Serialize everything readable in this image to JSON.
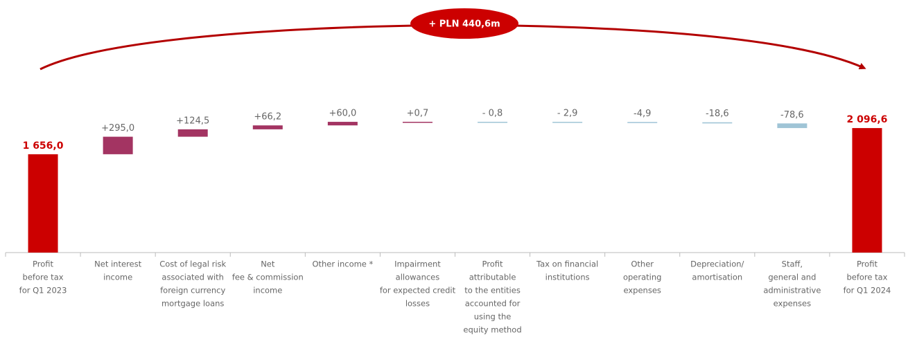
{
  "chart_data": {
    "type": "waterfall",
    "annotation": "+ PLN 440,6m",
    "categories": [
      [
        "Profit",
        "before tax",
        "for Q1 2023"
      ],
      [
        "Net interest",
        "income"
      ],
      [
        "Cost of legal risk",
        "associated with",
        "foreign currency",
        "mortgage loans"
      ],
      [
        "Net",
        "fee & commission",
        "income"
      ],
      [
        "Other income *"
      ],
      [
        "Impairment",
        "allowances",
        "for expected credit",
        "losses"
      ],
      [
        "Profit",
        "attributable",
        "to the entities",
        "accounted for",
        "using the",
        "equity method"
      ],
      [
        "Tax on financial",
        "institutions"
      ],
      [
        "Other",
        "operating",
        "expenses"
      ],
      [
        "Depreciation/",
        "amortisation"
      ],
      [
        "Staff,",
        "general and",
        "administrative",
        "expenses"
      ],
      [
        "Profit",
        "before tax",
        "for Q1 2024"
      ]
    ],
    "values": [
      1656.0,
      295.0,
      124.5,
      66.2,
      60.0,
      0.7,
      -0.8,
      -2.9,
      -4.9,
      -18.6,
      -78.6,
      2096.6
    ],
    "value_labels": [
      "1 656,0",
      "+295,0",
      "+124,5",
      "+66,2",
      "+60,0",
      "+0,7",
      "- 0,8",
      "- 2,9",
      "-4,9",
      "-18,6",
      "-78,6",
      "2 096,6"
    ],
    "totals": [
      0,
      11
    ],
    "colors": {
      "total": "#cc0000",
      "increase": "#a33462",
      "decrease": "#9fc4d6"
    }
  }
}
